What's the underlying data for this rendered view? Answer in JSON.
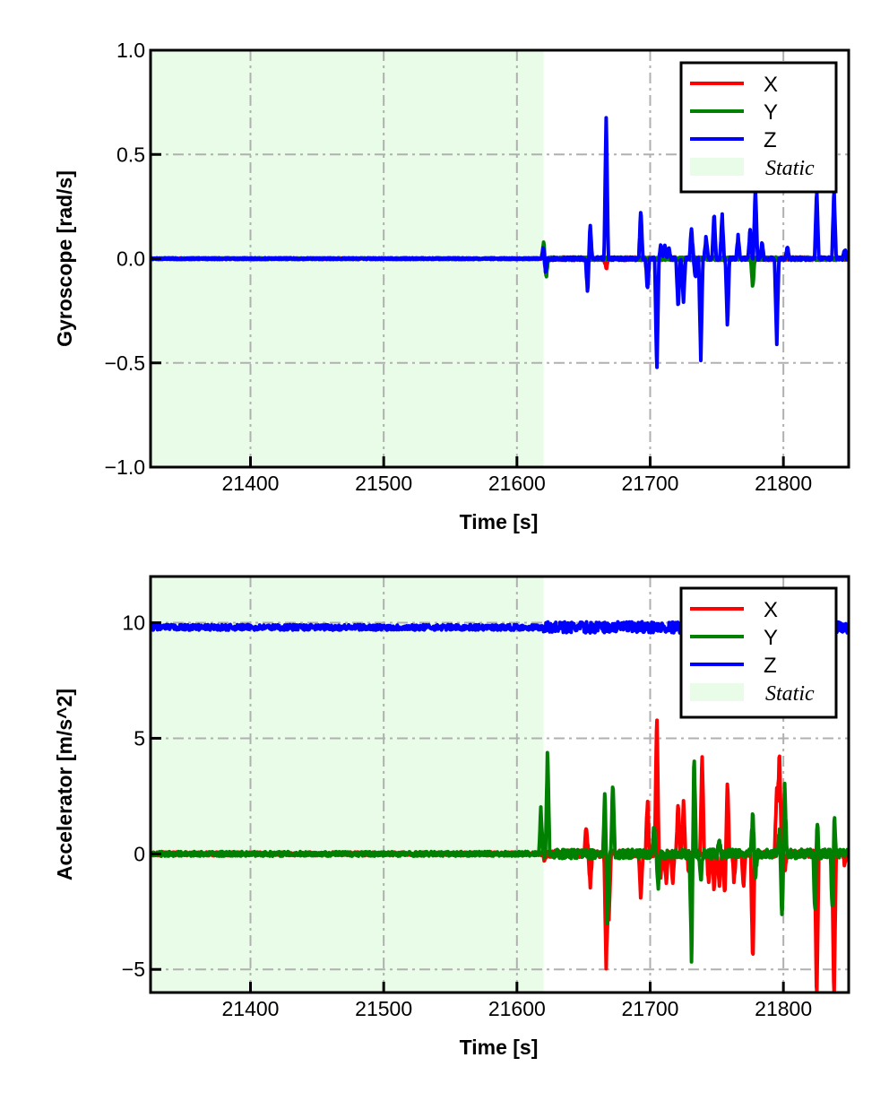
{
  "chart_data": [
    {
      "type": "line",
      "title": "",
      "xlabel": "Time [s]",
      "ylabel": "Gyroscope [rad/s]",
      "xlim": [
        21325,
        21849
      ],
      "ylim": [
        -1.0,
        1.0
      ],
      "xticks": [
        21400,
        21500,
        21600,
        21700,
        21800
      ],
      "xtick_labels": [
        "21400",
        "21500",
        "21600",
        "21700",
        "21800"
      ],
      "yticks": [
        -1.0,
        -0.5,
        0.0,
        0.5,
        1.0
      ],
      "ytick_labels": [
        "−1.0",
        "−0.5",
        "0.0",
        "0.5",
        "1.0"
      ],
      "grid": true,
      "legend_position": "top-right",
      "static_region": {
        "label": "Static",
        "x_range": [
          21325,
          21620
        ],
        "color": "#e8fce8"
      },
      "series": [
        {
          "name": "X",
          "color": "#ff0000",
          "baseline": 0.0,
          "noise": 0.004,
          "spikes": [
            [
              21620,
              0.04
            ],
            [
              21621,
              -0.06
            ],
            [
              21667,
              -0.05
            ]
          ]
        },
        {
          "name": "Y",
          "color": "#008000",
          "baseline": 0.0,
          "noise": 0.004,
          "spikes": [
            [
              21620,
              0.08
            ],
            [
              21622,
              -0.09
            ],
            [
              21777,
              -0.14
            ]
          ]
        },
        {
          "name": "Z",
          "color": "#0000ff",
          "baseline": 0.0,
          "noise": 0.004,
          "spikes": [
            [
              21620,
              0.06
            ],
            [
              21621.5,
              -0.07
            ],
            [
              21653,
              -0.16
            ],
            [
              21655,
              0.16
            ],
            [
              21667,
              0.69
            ],
            [
              21693,
              0.24
            ],
            [
              21698,
              -0.15
            ],
            [
              21705,
              -0.55
            ],
            [
              21708,
              0.07
            ],
            [
              21711,
              0.07
            ],
            [
              21714,
              0.06
            ],
            [
              21721,
              -0.25
            ],
            [
              21725,
              -0.21
            ],
            [
              21731,
              0.15
            ],
            [
              21734,
              -0.1
            ],
            [
              21738,
              -0.49
            ],
            [
              21742,
              0.11
            ],
            [
              21748,
              0.22
            ],
            [
              21754,
              0.22
            ],
            [
              21758,
              -0.33
            ],
            [
              21766,
              0.11
            ],
            [
              21775,
              0.14
            ],
            [
              21779,
              0.35
            ],
            [
              21784,
              0.08
            ],
            [
              21795,
              -0.42
            ],
            [
              21803,
              0.06
            ],
            [
              21825,
              0.34
            ],
            [
              21838,
              0.34
            ],
            [
              21846,
              0.05
            ]
          ]
        }
      ]
    },
    {
      "type": "line",
      "title": "",
      "xlabel": "Time [s]",
      "ylabel": "Accelerator [m/s^2]",
      "xlim": [
        21325,
        21849
      ],
      "ylim": [
        -6,
        12
      ],
      "xticks": [
        21400,
        21500,
        21600,
        21700,
        21800
      ],
      "xtick_labels": [
        "21400",
        "21500",
        "21600",
        "21700",
        "21800"
      ],
      "yticks": [
        -5,
        0,
        5,
        10
      ],
      "ytick_labels": [
        "−5",
        "0",
        "5",
        "10"
      ],
      "grid": true,
      "legend_position": "top-right",
      "static_region": {
        "label": "Static",
        "x_range": [
          21325,
          21620
        ],
        "color": "#e8fce8"
      },
      "series": [
        {
          "name": "X",
          "color": "#ff0000",
          "baseline": 0.0,
          "noise": 0.08,
          "spikes": [
            [
              21621,
              -0.3
            ],
            [
              21652,
              1.2
            ],
            [
              21655,
              -1.4
            ],
            [
              21667,
              -5.0
            ],
            [
              21669,
              -3.0
            ],
            [
              21693,
              -2.0
            ],
            [
              21698,
              2.3
            ],
            [
              21705,
              6.2
            ],
            [
              21708,
              -1.0
            ],
            [
              21712,
              -1.3
            ],
            [
              21717,
              -1.2
            ],
            [
              21721,
              2.3
            ],
            [
              21725,
              2.3
            ],
            [
              21729,
              -0.8
            ],
            [
              21739,
              4.4
            ],
            [
              21744,
              -1.4
            ],
            [
              21748,
              -1.6
            ],
            [
              21752,
              -1.5
            ],
            [
              21756,
              -1.7
            ],
            [
              21758,
              3.2
            ],
            [
              21763,
              -1.2
            ],
            [
              21770,
              -1.5
            ],
            [
              21777,
              -4.8
            ],
            [
              21795,
              3.0
            ],
            [
              21797,
              4.6
            ],
            [
              21801,
              -0.8
            ],
            [
              21825,
              -6.5
            ],
            [
              21838,
              -6.5
            ],
            [
              21846,
              -0.4
            ]
          ]
        },
        {
          "name": "Y",
          "color": "#008000",
          "baseline": 0.0,
          "noise": 0.1,
          "spikes": [
            [
              21618,
              2.0
            ],
            [
              21623,
              4.65
            ],
            [
              21666,
              2.6
            ],
            [
              21668,
              -3.1
            ],
            [
              21672,
              3.2
            ],
            [
              21703,
              1.3
            ],
            [
              21706,
              -1.5
            ],
            [
              21731,
              -4.5
            ],
            [
              21733,
              4.4
            ],
            [
              21738,
              -1.3
            ],
            [
              21752,
              0.6
            ],
            [
              21777,
              1.8
            ],
            [
              21779,
              -0.9
            ],
            [
              21797,
              1.0
            ],
            [
              21799,
              -2.9
            ],
            [
              21801,
              3.0
            ],
            [
              21825,
              2.4
            ],
            [
              21824,
              -3.6
            ],
            [
              21838,
              2.4
            ],
            [
              21837,
              -3.3
            ]
          ]
        },
        {
          "name": "Z",
          "color": "#0000ff",
          "baseline": 9.8,
          "noise": 0.12,
          "spikes": []
        }
      ]
    }
  ]
}
